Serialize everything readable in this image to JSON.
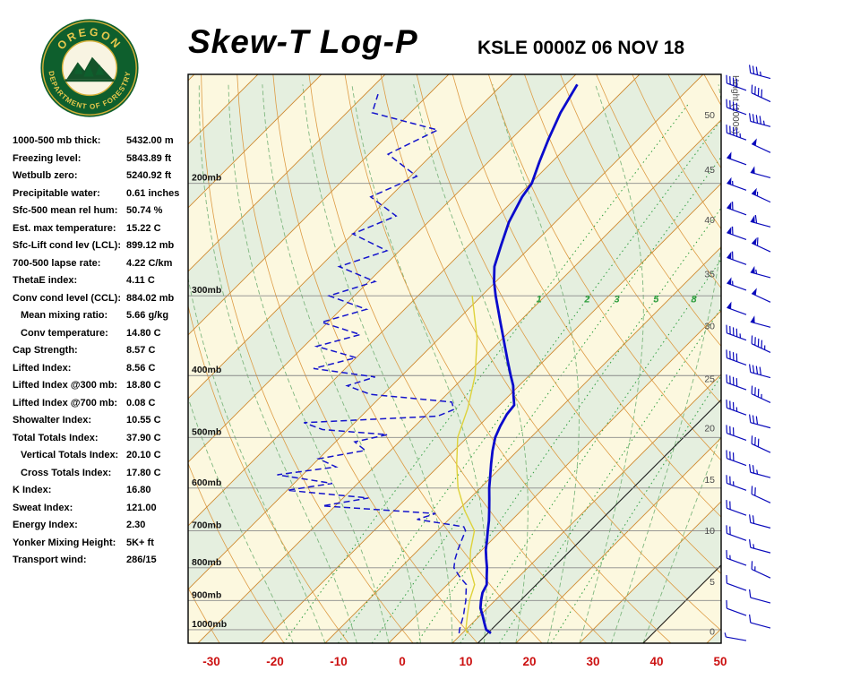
{
  "header": {
    "title": "Skew-T Log-P",
    "station_line": "KSLE 0000Z 06 NOV 18",
    "logo_top": "OREGON",
    "logo_bottom": "DEPARTMENT OF FORESTRY"
  },
  "indices": [
    {
      "label": "1000-500 mb thick:",
      "value": "5432.00 m",
      "indent": false
    },
    {
      "label": "Freezing level:",
      "value": "5843.89 ft",
      "indent": false
    },
    {
      "label": "Wetbulb zero:",
      "value": "5240.92 ft",
      "indent": false
    },
    {
      "label": "Precipitable water:",
      "value": "0.61 inches",
      "indent": false
    },
    {
      "label": "Sfc-500 mean rel hum:",
      "value": "50.74 %",
      "indent": false
    },
    {
      "label": "Est. max temperature:",
      "value": "15.22 C",
      "indent": false
    },
    {
      "label": "Sfc-Lift cond lev (LCL):",
      "value": "899.12 mb",
      "indent": false
    },
    {
      "label": "700-500 lapse rate:",
      "value": "4.22 C/km",
      "indent": false
    },
    {
      "label": "ThetaE index:",
      "value": "4.11 C",
      "indent": false
    },
    {
      "label": "Conv cond level (CCL):",
      "value": "884.02 mb",
      "indent": false
    },
    {
      "label": "Mean mixing ratio:",
      "value": "5.66 g/kg",
      "indent": true
    },
    {
      "label": "Conv temperature:",
      "value": "14.80 C",
      "indent": true
    },
    {
      "label": "Cap Strength:",
      "value": "8.57 C",
      "indent": false
    },
    {
      "label": "Lifted Index:",
      "value": "8.56 C",
      "indent": false
    },
    {
      "label": "Lifted Index @300 mb:",
      "value": "18.80 C",
      "indent": false
    },
    {
      "label": "Lifted Index @700 mb:",
      "value": "0.08 C",
      "indent": false
    },
    {
      "label": "Showalter Index:",
      "value": "10.55 C",
      "indent": false
    },
    {
      "label": "Total Totals Index:",
      "value": "37.90 C",
      "indent": false
    },
    {
      "label": "Vertical Totals Index:",
      "value": "20.10 C",
      "indent": true
    },
    {
      "label": "Cross Totals Index:",
      "value": "17.80 C",
      "indent": true
    },
    {
      "label": "K Index:",
      "value": "16.80",
      "indent": false
    },
    {
      "label": "Sweat Index:",
      "value": "121.00",
      "indent": false
    },
    {
      "label": "Energy Index:",
      "value": "2.30",
      "indent": false
    },
    {
      "label": "Yonker Mixing Height:",
      "value": "5K+ ft",
      "indent": false
    },
    {
      "label": "Transport wind:",
      "value": "286/15",
      "indent": false
    }
  ],
  "chart_data": {
    "type": "skewt-log-p",
    "title": "Skew-T Log-P",
    "station": "KSLE 0000Z 06 NOV 18",
    "pressure_axis": {
      "ticks": [
        200,
        300,
        400,
        500,
        600,
        700,
        800,
        900,
        1000
      ],
      "unit": "mb",
      "top": 135,
      "bottom": 1050
    },
    "temp_axis": {
      "ticks": [
        -30,
        -20,
        -10,
        0,
        10,
        20,
        30,
        40,
        50
      ],
      "unit": "C"
    },
    "height_axis": {
      "title": "Height (1000s)",
      "labels": [
        {
          "kft": 0,
          "p": 1005
        },
        {
          "kft": 5,
          "p": 840
        },
        {
          "kft": 10,
          "p": 699
        },
        {
          "kft": 15,
          "p": 581
        },
        {
          "kft": 20,
          "p": 483
        },
        {
          "kft": 25,
          "p": 404
        },
        {
          "kft": 30,
          "p": 334
        },
        {
          "kft": 35,
          "p": 277
        },
        {
          "kft": 40,
          "p": 228
        },
        {
          "kft": 45,
          "p": 190
        },
        {
          "kft": 50,
          "p": 156
        }
      ]
    },
    "isotherms": {
      "step": 10,
      "min": -120,
      "max": 60
    },
    "dry_adiabats": {
      "step": 10,
      "min_c": -40,
      "max_c": 160
    },
    "moist_adiabats": {
      "step": 5,
      "min_c": -15,
      "max_c": 40
    },
    "mixing_ratio": {
      "values": [
        1,
        2,
        3,
        5,
        8,
        12,
        20
      ],
      "labeled": [
        1,
        2,
        3,
        5,
        8
      ],
      "label_pressure": 310
    },
    "reference_isotherms_black": [
      14,
      40
    ],
    "series": {
      "temperature": [
        [
          1013,
          14.5
        ],
        [
          1000,
          13.2
        ],
        [
          975,
          11.8
        ],
        [
          950,
          10.4
        ],
        [
          925,
          8.9
        ],
        [
          900,
          7.8
        ],
        [
          875,
          6.8
        ],
        [
          850,
          6.2
        ],
        [
          825,
          4.9
        ],
        [
          800,
          3.6
        ],
        [
          775,
          2.1
        ],
        [
          750,
          0.6
        ],
        [
          725,
          -0.7
        ],
        [
          700,
          -2.1
        ],
        [
          675,
          -3.5
        ],
        [
          650,
          -5.1
        ],
        [
          625,
          -6.8
        ],
        [
          600,
          -8.6
        ],
        [
          575,
          -10.3
        ],
        [
          550,
          -12.1
        ],
        [
          525,
          -13.9
        ],
        [
          500,
          -15.6
        ],
        [
          480,
          -16.6
        ],
        [
          460,
          -17.4
        ],
        [
          445,
          -17.7
        ],
        [
          430,
          -19.3
        ],
        [
          415,
          -20.9
        ],
        [
          400,
          -22.9
        ],
        [
          380,
          -25.6
        ],
        [
          360,
          -28.4
        ],
        [
          345,
          -30.6
        ],
        [
          330,
          -32.9
        ],
        [
          315,
          -35.3
        ],
        [
          300,
          -37.8
        ],
        [
          285,
          -40.3
        ],
        [
          270,
          -42.6
        ],
        [
          250,
          -44.9
        ],
        [
          230,
          -47.3
        ],
        [
          210,
          -49.2
        ],
        [
          200,
          -49.8
        ],
        [
          185,
          -52.0
        ],
        [
          170,
          -54.2
        ],
        [
          155,
          -56.4
        ],
        [
          140,
          -58.2
        ]
      ],
      "dewpoint": [
        [
          1013,
          9.5
        ],
        [
          1000,
          9.0
        ],
        [
          975,
          8.2
        ],
        [
          950,
          7.4
        ],
        [
          925,
          6.4
        ],
        [
          900,
          5.4
        ],
        [
          875,
          4.2
        ],
        [
          850,
          3.0
        ],
        [
          825,
          0.6
        ],
        [
          800,
          -1.6
        ],
        [
          775,
          -2.8
        ],
        [
          750,
          -3.8
        ],
        [
          725,
          -4.7
        ],
        [
          700,
          -5.6
        ],
        [
          690,
          -6.5
        ],
        [
          672,
          -15.0
        ],
        [
          658,
          -13.0
        ],
        [
          640,
          -32.0
        ],
        [
          622,
          -26.0
        ],
        [
          605,
          -40.0
        ],
        [
          590,
          -34.0
        ],
        [
          572,
          -44.0
        ],
        [
          556,
          -36.0
        ],
        [
          540,
          -40.0
        ],
        [
          524,
          -34.0
        ],
        [
          508,
          -37.0
        ],
        [
          495,
          -33.0
        ],
        [
          486,
          -44.0
        ],
        [
          474,
          -48.0
        ],
        [
          463,
          -28.0
        ],
        [
          452,
          -26.5
        ],
        [
          440,
          -28.0
        ],
        [
          428,
          -42.0
        ],
        [
          415,
          -47.0
        ],
        [
          402,
          -44.0
        ],
        [
          390,
          -55.0
        ],
        [
          375,
          -50.0
        ],
        [
          360,
          -58.0
        ],
        [
          345,
          -53.0
        ],
        [
          330,
          -61.0
        ],
        [
          315,
          -56.0
        ],
        [
          300,
          -64.0
        ],
        [
          285,
          -59.0
        ],
        [
          270,
          -67.0
        ],
        [
          255,
          -62.0
        ],
        [
          240,
          -70.0
        ],
        [
          225,
          -66.0
        ],
        [
          210,
          -73.0
        ],
        [
          195,
          -69.0
        ],
        [
          180,
          -77.0
        ],
        [
          165,
          -73.0
        ],
        [
          155,
          -86.0
        ],
        [
          145,
          -88.0
        ]
      ],
      "wetbulb": [
        [
          1013,
          10.8
        ],
        [
          1000,
          10.0
        ],
        [
          950,
          8.0
        ],
        [
          900,
          6.0
        ],
        [
          850,
          4.3
        ],
        [
          800,
          0.9
        ],
        [
          750,
          -1.8
        ],
        [
          700,
          -4.2
        ],
        [
          650,
          -9.0
        ],
        [
          600,
          -13.5
        ],
        [
          550,
          -17.5
        ],
        [
          500,
          -21.5
        ],
        [
          450,
          -24.5
        ],
        [
          400,
          -28.5
        ],
        [
          350,
          -34.0
        ],
        [
          300,
          -41.5
        ]
      ]
    },
    "winds": [
      [
        1040,
        280,
        5
      ],
      [
        994,
        285,
        8
      ],
      [
        950,
        290,
        10
      ],
      [
        908,
        285,
        10
      ],
      [
        868,
        290,
        12
      ],
      [
        830,
        295,
        15
      ],
      [
        793,
        290,
        15
      ],
      [
        758,
        285,
        15
      ],
      [
        725,
        290,
        18
      ],
      [
        693,
        285,
        20
      ],
      [
        662,
        290,
        20
      ],
      [
        633,
        295,
        22
      ],
      [
        605,
        290,
        25
      ],
      [
        578,
        285,
        25
      ],
      [
        553,
        290,
        28
      ],
      [
        528,
        295,
        30
      ],
      [
        505,
        290,
        30
      ],
      [
        483,
        285,
        32
      ],
      [
        461,
        290,
        35
      ],
      [
        441,
        295,
        35
      ],
      [
        421,
        290,
        38
      ],
      [
        403,
        285,
        40
      ],
      [
        385,
        290,
        42
      ],
      [
        368,
        295,
        45
      ],
      [
        352,
        290,
        45
      ],
      [
        336,
        285,
        48
      ],
      [
        321,
        290,
        50
      ],
      [
        307,
        295,
        52
      ],
      [
        294,
        290,
        55
      ],
      [
        281,
        285,
        55
      ],
      [
        268,
        290,
        58
      ],
      [
        256,
        295,
        60
      ],
      [
        245,
        290,
        62
      ],
      [
        234,
        285,
        60
      ],
      [
        224,
        290,
        58
      ],
      [
        214,
        295,
        55
      ],
      [
        205,
        290,
        55
      ],
      [
        196,
        285,
        52
      ],
      [
        187,
        290,
        50
      ],
      [
        179,
        295,
        48
      ],
      [
        171,
        290,
        45
      ],
      [
        163,
        285,
        45
      ],
      [
        156,
        290,
        42
      ],
      [
        149,
        295,
        40
      ],
      [
        143,
        290,
        38
      ],
      [
        137,
        285,
        35
      ]
    ],
    "colors": {
      "temperature": "#0a0acc",
      "dewpoint": "#1414cc",
      "wetbulb": "#ded23a",
      "isotherm": "#cf8a30",
      "adiabat": "#dd9b44",
      "moist_adiabat": "#7fb77f",
      "mixing": "#2e9e3e",
      "band_a": "#fcf8df",
      "band_b": "#e5efdf",
      "pressure_line": "#8a8a8a",
      "temp_label": "#cc1111",
      "wind": "#0a0abb",
      "frame": "#000000"
    }
  }
}
